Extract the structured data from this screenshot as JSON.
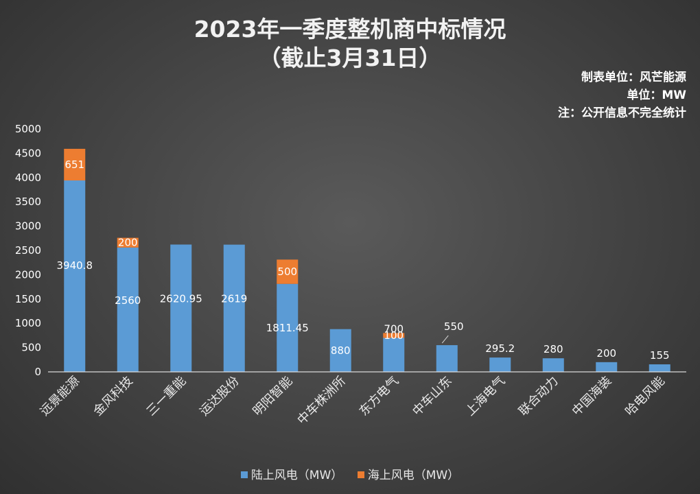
{
  "chart_data": {
    "type": "bar",
    "stacked": true,
    "title": [
      "2023年一季度整机商中标情况",
      "（截止3月31日）"
    ],
    "notes": [
      "制表单位：风芒能源",
      "单位：MW",
      "注：公开信息不完全统计"
    ],
    "categories": [
      "远景能源",
      "金风科技",
      "三一重能",
      "运达股份",
      "明阳智能",
      "中车株洲所",
      "东方电气",
      "中车山东",
      "上海电气",
      "联合动力",
      "中国海装",
      "哈电风能"
    ],
    "series": [
      {
        "name": "陆上风电（MW）",
        "color": "#5b9bd5",
        "values": [
          3940.8,
          2560,
          2620.95,
          2619,
          1811.45,
          880,
          700,
          550,
          295.2,
          280,
          200,
          155
        ],
        "labels": [
          "3940.8",
          "2560",
          "2620.95",
          "2619",
          "1811.45",
          "880",
          "700",
          "550",
          "295.2",
          "280",
          "200",
          "155"
        ]
      },
      {
        "name": "海上风电（MW）",
        "color": "#ed7d31",
        "values": [
          651,
          200,
          0,
          0,
          500,
          0,
          100,
          0,
          0,
          0,
          0,
          0
        ],
        "labels": [
          "651",
          "200",
          "",
          "",
          "500",
          "",
          "100",
          "",
          "",
          "",
          "",
          ""
        ]
      }
    ],
    "ylim": [
      0,
      5000
    ],
    "yticks": [
      "0",
      "500",
      "1000",
      "1500",
      "2000",
      "2500",
      "3000",
      "3500",
      "4000",
      "4500",
      "5000"
    ],
    "grid": false,
    "legend": "bottom"
  }
}
